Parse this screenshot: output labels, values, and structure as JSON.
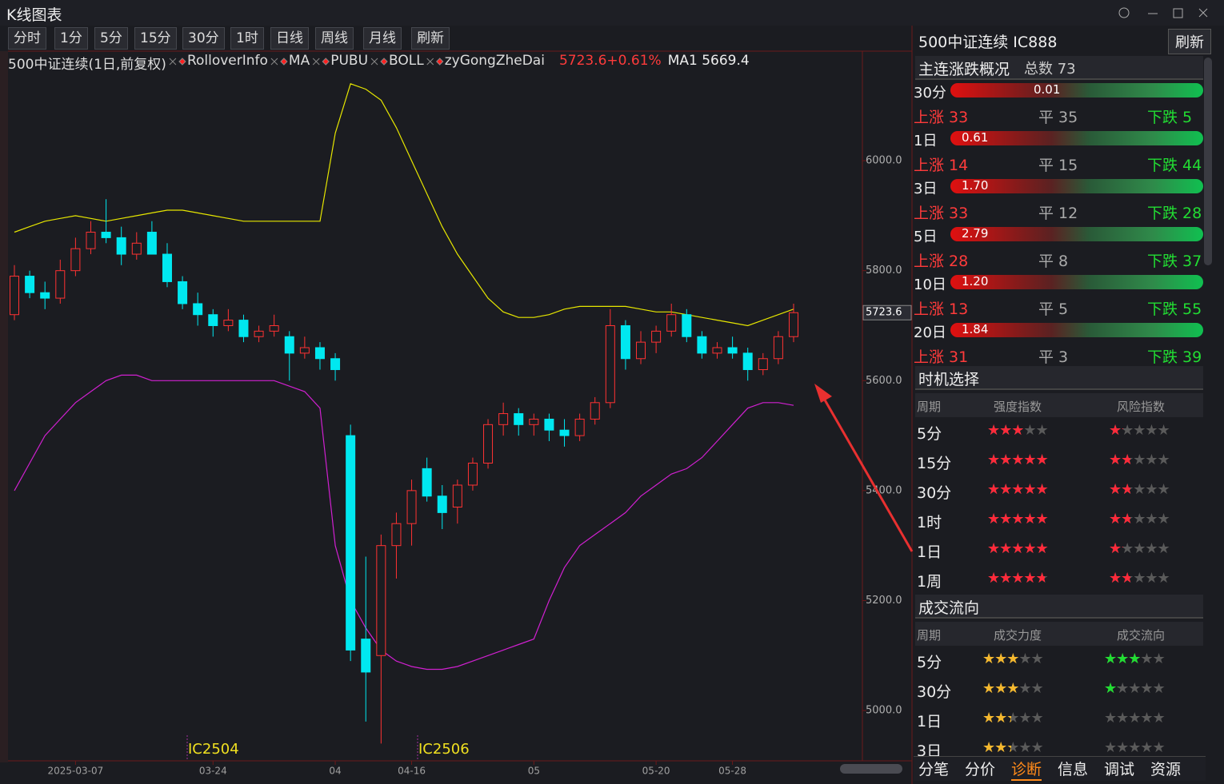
{
  "window": {
    "title": "K线图表"
  },
  "toolbar": {
    "buttons": [
      "分时",
      "1分",
      "5分",
      "15分",
      "30分",
      "1时",
      "日线",
      "周线",
      "月线",
      "刷新"
    ]
  },
  "legend": {
    "items": [
      "500中证连续(1日,前复权)",
      "RolloverInfo",
      "MA",
      "PUBU",
      "BOLL",
      "zyGongZheDai"
    ],
    "quote": "5723.6+0.61%",
    "ma": "MA1 5669.4"
  },
  "chart_data": {
    "type": "candlestick",
    "candles": [
      [
        5720,
        5810,
        5710,
        5790
      ],
      [
        5790,
        5800,
        5750,
        5760
      ],
      [
        5760,
        5780,
        5730,
        5750
      ],
      [
        5750,
        5820,
        5740,
        5800
      ],
      [
        5800,
        5860,
        5790,
        5840
      ],
      [
        5840,
        5890,
        5830,
        5870
      ],
      [
        5870,
        5930,
        5850,
        5860
      ],
      [
        5860,
        5880,
        5810,
        5830
      ],
      [
        5830,
        5870,
        5820,
        5850
      ],
      [
        5870,
        5890,
        5830,
        5830
      ],
      [
        5830,
        5850,
        5770,
        5780
      ],
      [
        5780,
        5790,
        5730,
        5740
      ],
      [
        5740,
        5760,
        5700,
        5720
      ],
      [
        5720,
        5730,
        5680,
        5700
      ],
      [
        5700,
        5730,
        5690,
        5710
      ],
      [
        5710,
        5720,
        5670,
        5680
      ],
      [
        5680,
        5700,
        5670,
        5690
      ],
      [
        5690,
        5720,
        5680,
        5700
      ],
      [
        5680,
        5690,
        5600,
        5650
      ],
      [
        5650,
        5680,
        5640,
        5660
      ],
      [
        5660,
        5670,
        5620,
        5640
      ],
      [
        5640,
        5650,
        5600,
        5620
      ],
      [
        5500,
        5520,
        5090,
        5110
      ],
      [
        5130,
        5280,
        4980,
        5070
      ],
      [
        5100,
        5320,
        4940,
        5300
      ],
      [
        5300,
        5360,
        5240,
        5340
      ],
      [
        5340,
        5420,
        5300,
        5400
      ],
      [
        5440,
        5460,
        5380,
        5390
      ],
      [
        5390,
        5410,
        5330,
        5360
      ],
      [
        5370,
        5420,
        5340,
        5410
      ],
      [
        5410,
        5460,
        5400,
        5450
      ],
      [
        5450,
        5530,
        5440,
        5520
      ],
      [
        5520,
        5560,
        5500,
        5540
      ],
      [
        5540,
        5550,
        5500,
        5520
      ],
      [
        5520,
        5540,
        5500,
        5530
      ],
      [
        5530,
        5540,
        5490,
        5510
      ],
      [
        5510,
        5530,
        5480,
        5500
      ],
      [
        5500,
        5540,
        5490,
        5530
      ],
      [
        5530,
        5570,
        5520,
        5560
      ],
      [
        5560,
        5730,
        5550,
        5700
      ],
      [
        5700,
        5710,
        5620,
        5640
      ],
      [
        5640,
        5690,
        5630,
        5670
      ],
      [
        5670,
        5700,
        5650,
        5690
      ],
      [
        5690,
        5740,
        5680,
        5720
      ],
      [
        5720,
        5730,
        5670,
        5680
      ],
      [
        5680,
        5690,
        5640,
        5650
      ],
      [
        5650,
        5670,
        5640,
        5660
      ],
      [
        5660,
        5680,
        5640,
        5650
      ],
      [
        5650,
        5660,
        5600,
        5620
      ],
      [
        5620,
        5650,
        5610,
        5640
      ],
      [
        5640,
        5690,
        5630,
        5680
      ],
      [
        5680,
        5740,
        5670,
        5723.6
      ]
    ],
    "up_color": "#ff3232",
    "down_color": "#00e8f0",
    "categories": [
      null,
      null,
      null,
      null,
      "2025-03-07",
      null,
      null,
      null,
      null,
      null,
      null,
      null,
      null,
      "03-24",
      null,
      null,
      null,
      null,
      null,
      null,
      null,
      "04",
      null,
      null,
      null,
      null,
      "04-16",
      null,
      null,
      null,
      null,
      null,
      null,
      null,
      "05",
      null,
      null,
      null,
      null,
      null,
      null,
      null,
      "05-20",
      null,
      null,
      null,
      null,
      "05-28",
      null,
      null,
      null,
      null
    ],
    "ylim": [
      4910,
      6160
    ],
    "yticks": [
      {
        "value": 5000,
        "label": "5000.0"
      },
      {
        "value": 5200,
        "label": "5200.0"
      },
      {
        "value": 5400,
        "label": "5400.0"
      },
      {
        "value": 5600,
        "label": "5600.0"
      },
      {
        "value": 5800,
        "label": "5800.0"
      },
      {
        "value": 6000,
        "label": "6000.0"
      }
    ],
    "overlays": [
      {
        "color": "#e6e600",
        "values": [
          5870,
          5880,
          5890,
          5895,
          5900,
          5895,
          5890,
          5895,
          5900,
          5905,
          5910,
          5910,
          5905,
          5900,
          5895,
          5890,
          5890,
          5890,
          5890,
          5890,
          5890,
          6050,
          6140,
          6130,
          6110,
          6060,
          6000,
          5940,
          5880,
          5830,
          5790,
          5750,
          5725,
          5715,
          5715,
          5720,
          5730,
          5735,
          5735,
          5735,
          5735,
          5730,
          5725,
          5725,
          5720,
          5715,
          5710,
          5705,
          5700,
          5710,
          5720,
          5730
        ]
      },
      {
        "color": "#d020d0",
        "values": [
          5400,
          5450,
          5500,
          5530,
          5560,
          5580,
          5600,
          5610,
          5610,
          5600,
          5600,
          5600,
          5600,
          5600,
          5600,
          5600,
          5600,
          5600,
          5590,
          5580,
          5550,
          5300,
          5200,
          5150,
          5110,
          5090,
          5080,
          5075,
          5075,
          5080,
          5090,
          5100,
          5110,
          5120,
          5130,
          5200,
          5260,
          5300,
          5320,
          5340,
          5360,
          5390,
          5410,
          5430,
          5440,
          5460,
          5490,
          5520,
          5550,
          5560,
          5560,
          5555
        ]
      }
    ],
    "annotations": [
      "IC2504",
      "IC2506"
    ]
  },
  "side": {
    "name": "500中证连续 IC888",
    "refresh": "刷新",
    "overview": {
      "title": "主连涨跌概况",
      "total": "总数 73",
      "rows": [
        {
          "period": "30分",
          "value": "0.01",
          "up": "上涨 33",
          "flat": "平 35",
          "down": "下跌 5"
        },
        {
          "period": "1日",
          "value": "0.61",
          "up": "上涨 14",
          "flat": "平 15",
          "down": "下跌 44"
        },
        {
          "period": "3日",
          "value": "1.70",
          "up": "上涨 33",
          "flat": "平 12",
          "down": "下跌 28"
        },
        {
          "period": "5日",
          "value": "2.79",
          "up": "上涨 28",
          "flat": "平 8",
          "down": "下跌 37"
        },
        {
          "period": "10日",
          "value": "1.20",
          "up": "上涨 13",
          "flat": "平 5",
          "down": "下跌 55"
        },
        {
          "period": "20日",
          "value": "1.84",
          "up": "上涨 31",
          "flat": "平 3",
          "down": "下跌 39"
        }
      ]
    },
    "timing": {
      "title": "时机选择",
      "headers": [
        "周期",
        "强度指数",
        "风险指数"
      ],
      "colors": [
        "#ff2a3a",
        "#ff2a3a"
      ],
      "rows": [
        {
          "period": "5分",
          "a": 2.5,
          "b": 1
        },
        {
          "period": "15分",
          "a": 4.5,
          "b": 1.5
        },
        {
          "period": "30分",
          "a": 5,
          "b": 1.5
        },
        {
          "period": "1时",
          "a": 5,
          "b": 1.5
        },
        {
          "period": "1日",
          "a": 4.5,
          "b": 1
        },
        {
          "period": "1周",
          "a": 4,
          "b": 1.5
        }
      ]
    },
    "volume": {
      "title": "成交流向",
      "headers": [
        "周期",
        "成交力度",
        "成交流向"
      ],
      "colors": [
        "#f5b82e",
        "#22dd33"
      ],
      "rows": [
        {
          "period": "5分",
          "a": 2.5,
          "b": 2.5
        },
        {
          "period": "30分",
          "a": 2.5,
          "b": 1
        },
        {
          "period": "1日",
          "a": 2,
          "b": 0
        },
        {
          "period": "3日",
          "a": 2,
          "b": 0
        }
      ]
    },
    "tabs": [
      "分笔",
      "分价",
      "诊断",
      "信息",
      "调试",
      "资源"
    ],
    "active_tab": "诊断"
  }
}
